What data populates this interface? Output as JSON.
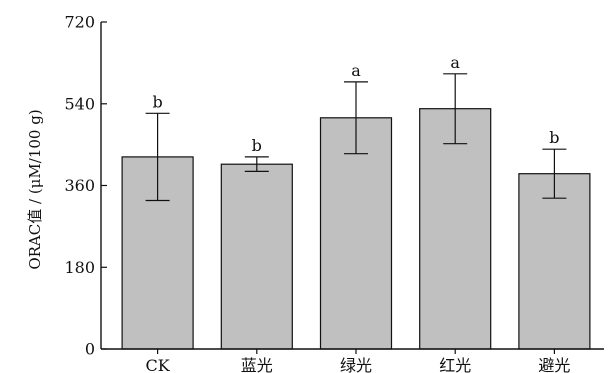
{
  "chart_data": {
    "type": "bar",
    "title": "",
    "xlabel": "",
    "ylabel": "ORAC值 / (μM/100 g)",
    "ylim": [
      0,
      720
    ],
    "yticks": [
      0,
      180,
      360,
      540,
      720
    ],
    "grid": false,
    "legend": "none",
    "categories": [
      "CK",
      "蓝光",
      "绿光",
      "红光",
      "避光"
    ],
    "values": [
      423,
      407,
      509,
      529,
      386
    ],
    "error": [
      96,
      16,
      79,
      77,
      54
    ],
    "significance": [
      "b",
      "b",
      "a",
      "a",
      "b"
    ],
    "bar_color": "#c0c0c0",
    "edge_color": "#111111"
  }
}
